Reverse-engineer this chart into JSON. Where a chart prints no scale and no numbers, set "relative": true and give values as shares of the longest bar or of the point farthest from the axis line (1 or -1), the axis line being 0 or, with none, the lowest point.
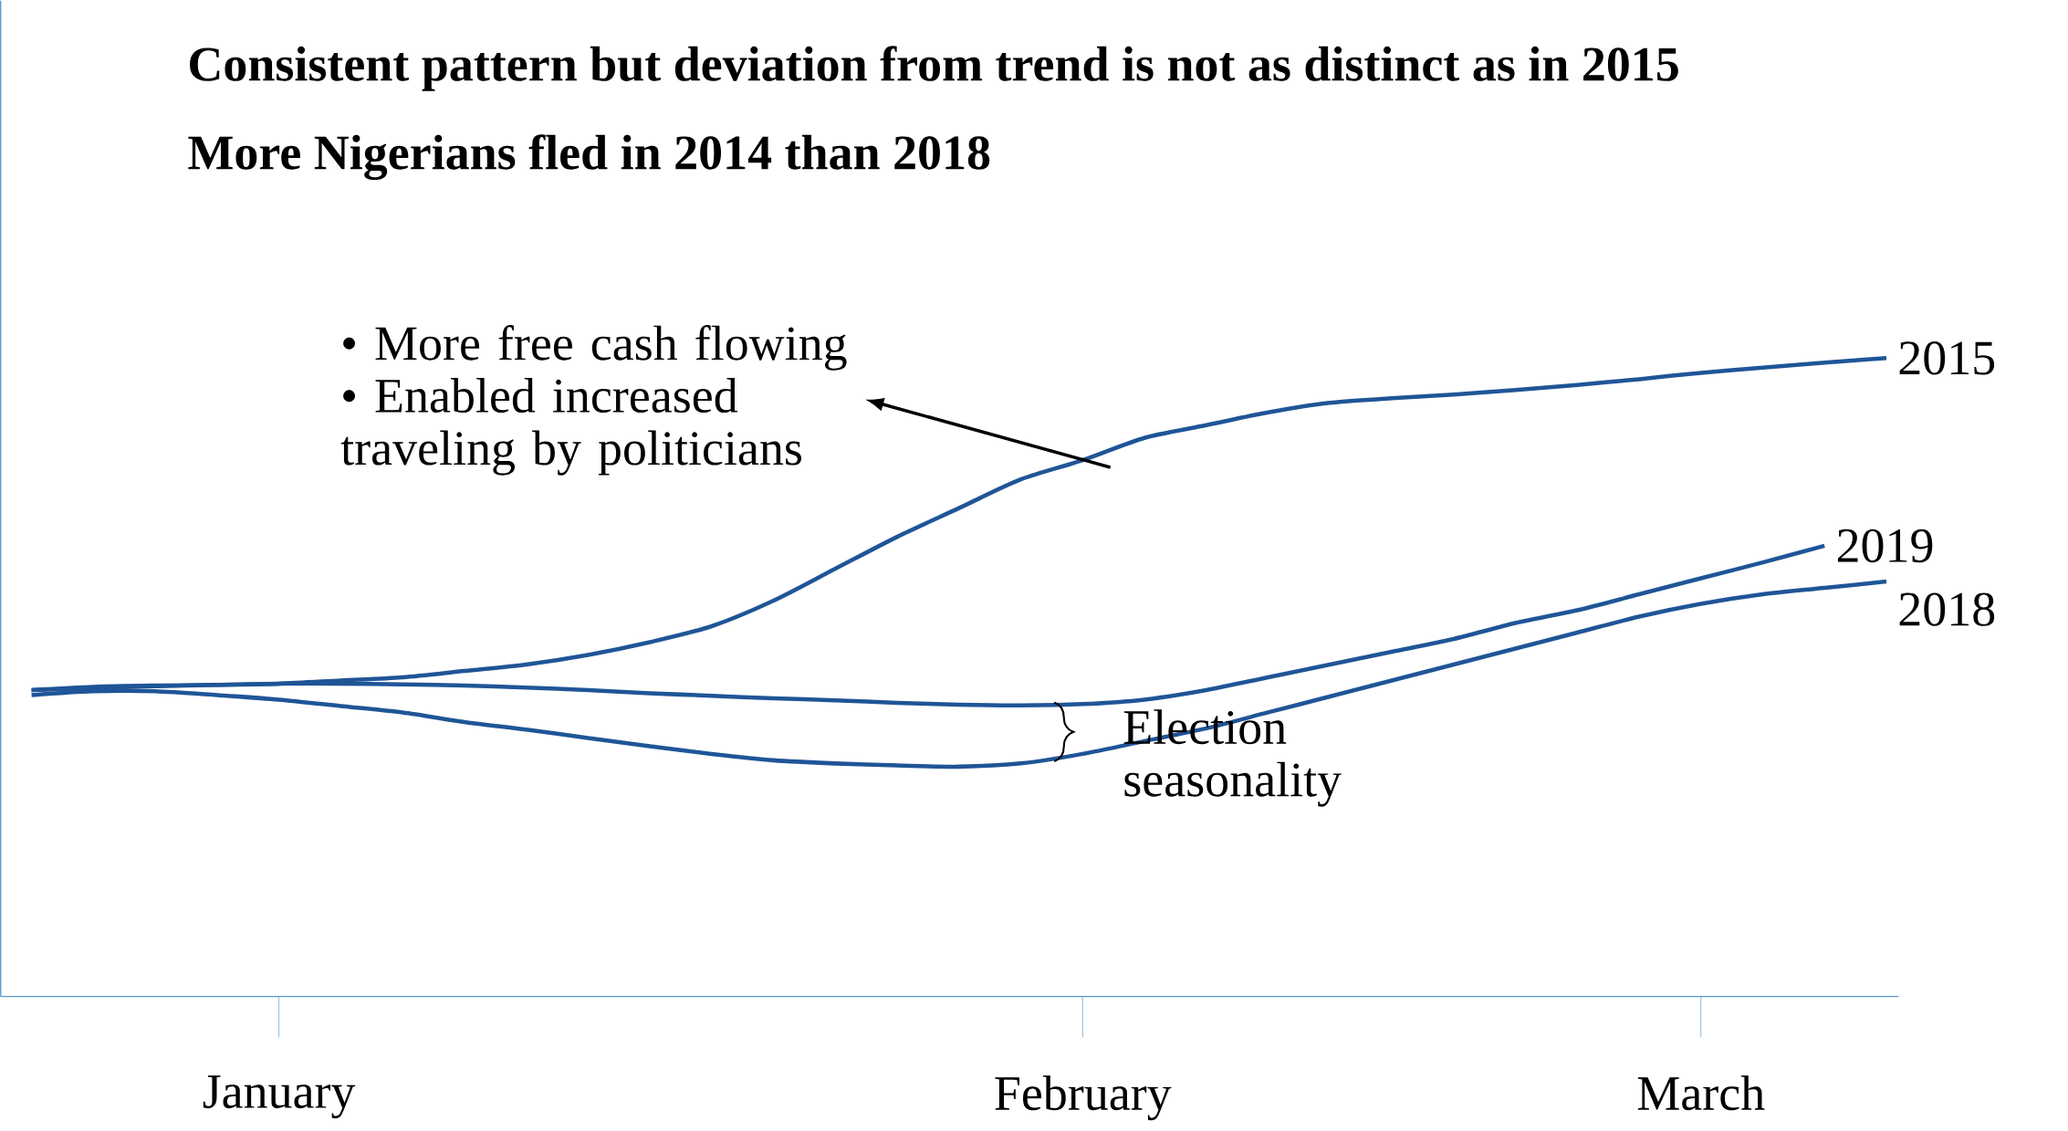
{
  "chart_data": {
    "type": "line",
    "title": "Consistent pattern but deviation from trend is not as distinct as in 2015",
    "subtitle": "More Nigerians fled in 2014 than 2018",
    "relative": true,
    "marker": "none",
    "legend": false,
    "categories": [
      null,
      null,
      null,
      null,
      "January",
      null,
      null,
      null,
      null,
      null,
      null,
      null,
      null,
      null,
      null,
      null,
      null,
      "February",
      null,
      null,
      null,
      null,
      null,
      null,
      null,
      null,
      null,
      "March",
      null,
      null,
      null
    ],
    "series": [
      {
        "name": "2015",
        "color": "#1f5597",
        "values": [
          0.48,
          0.485,
          0.487,
          0.488,
          0.49,
          0.495,
          0.5,
          0.51,
          0.52,
          0.535,
          0.555,
          0.58,
          0.62,
          0.67,
          0.72,
          0.765,
          0.81,
          0.84,
          0.875,
          0.895,
          0.915,
          0.93,
          0.937,
          0.943,
          0.95,
          0.958,
          0.967,
          0.977,
          0.985,
          0.993,
          1.0
        ]
      },
      {
        "name": "2019",
        "color": "#1f5597",
        "values": [
          0.48,
          0.483,
          0.486,
          0.488,
          0.49,
          0.49,
          0.489,
          0.487,
          0.484,
          0.48,
          0.475,
          0.471,
          0.467,
          0.464,
          0.46,
          0.457,
          0.456,
          0.458,
          0.465,
          0.48,
          0.5,
          0.52,
          0.54,
          0.56,
          0.585,
          0.605,
          0.63,
          0.655,
          0.68,
          0.706,
          null
        ]
      },
      {
        "name": "2018",
        "color": "#1f5597",
        "values": [
          0.472,
          0.478,
          0.478,
          0.472,
          0.465,
          0.455,
          0.445,
          0.43,
          0.418,
          0.405,
          0.392,
          0.38,
          0.37,
          0.365,
          0.362,
          0.36,
          0.365,
          0.38,
          0.4,
          0.42,
          0.445,
          0.47,
          0.495,
          0.52,
          0.545,
          0.57,
          0.595,
          0.615,
          0.63,
          0.64,
          0.65
        ]
      }
    ],
    "annotations": [
      "• More free cash flowing",
      "• Enabled increased traveling by politicians",
      "Election seasonality"
    ]
  }
}
